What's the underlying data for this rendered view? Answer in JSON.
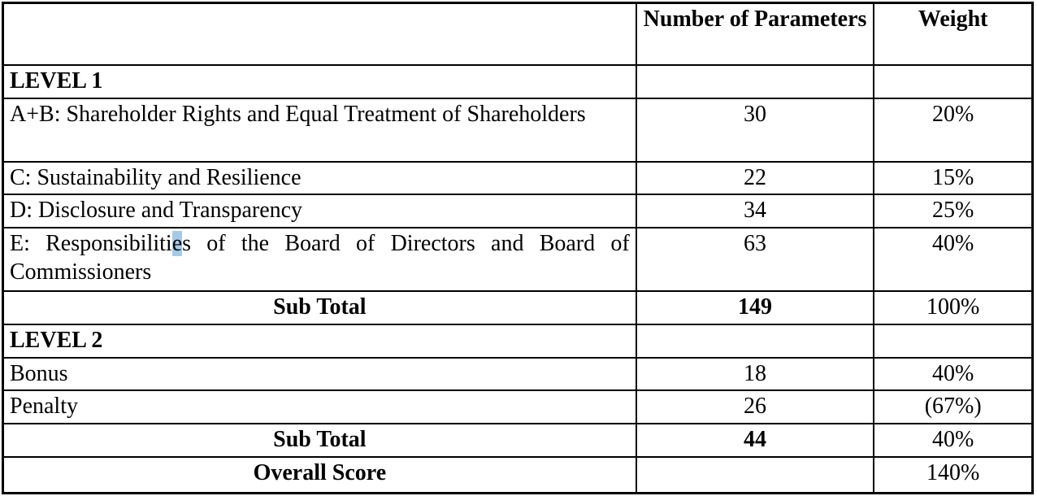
{
  "table": {
    "selection_highlight_color": "#a6c9e8",
    "border_color": "#000000",
    "columns": [
      {
        "label": ""
      },
      {
        "label": "Number of Parameters"
      },
      {
        "label": "Weight"
      }
    ],
    "rows": [
      {
        "type": "section",
        "label": "LEVEL 1",
        "params": "",
        "weight": ""
      },
      {
        "type": "item",
        "tall": true,
        "justify": true,
        "label": "A+B: Shareholder Rights and Equal Treatment of Shareholders",
        "params": "30",
        "weight": "20%"
      },
      {
        "type": "item",
        "label": "C: Sustainability and Resilience",
        "params": "22",
        "weight": "15%"
      },
      {
        "type": "item",
        "label": "D: Disclosure and Transparency",
        "params": "34",
        "weight": "25%"
      },
      {
        "type": "item",
        "tall": true,
        "justify": true,
        "label_parts": {
          "before": "E: Responsibiliti",
          "highlighted": "e",
          "after": "s of the Board of Directors and Board of Commissioners"
        },
        "params": "63",
        "weight": "40%"
      },
      {
        "type": "subtotal",
        "label": "Sub Total",
        "params": "149",
        "weight": "100%"
      },
      {
        "type": "section",
        "label": "LEVEL 2",
        "params": "",
        "weight": ""
      },
      {
        "type": "item",
        "label": "Bonus",
        "params": "18",
        "weight": "40%"
      },
      {
        "type": "item",
        "label": "Penalty",
        "params": "26",
        "weight": "(67%)"
      },
      {
        "type": "subtotal",
        "label": "Sub Total",
        "params": "44",
        "weight": "40%"
      },
      {
        "type": "overall",
        "label": "Overall Score",
        "params": "",
        "weight": "140%"
      }
    ]
  }
}
